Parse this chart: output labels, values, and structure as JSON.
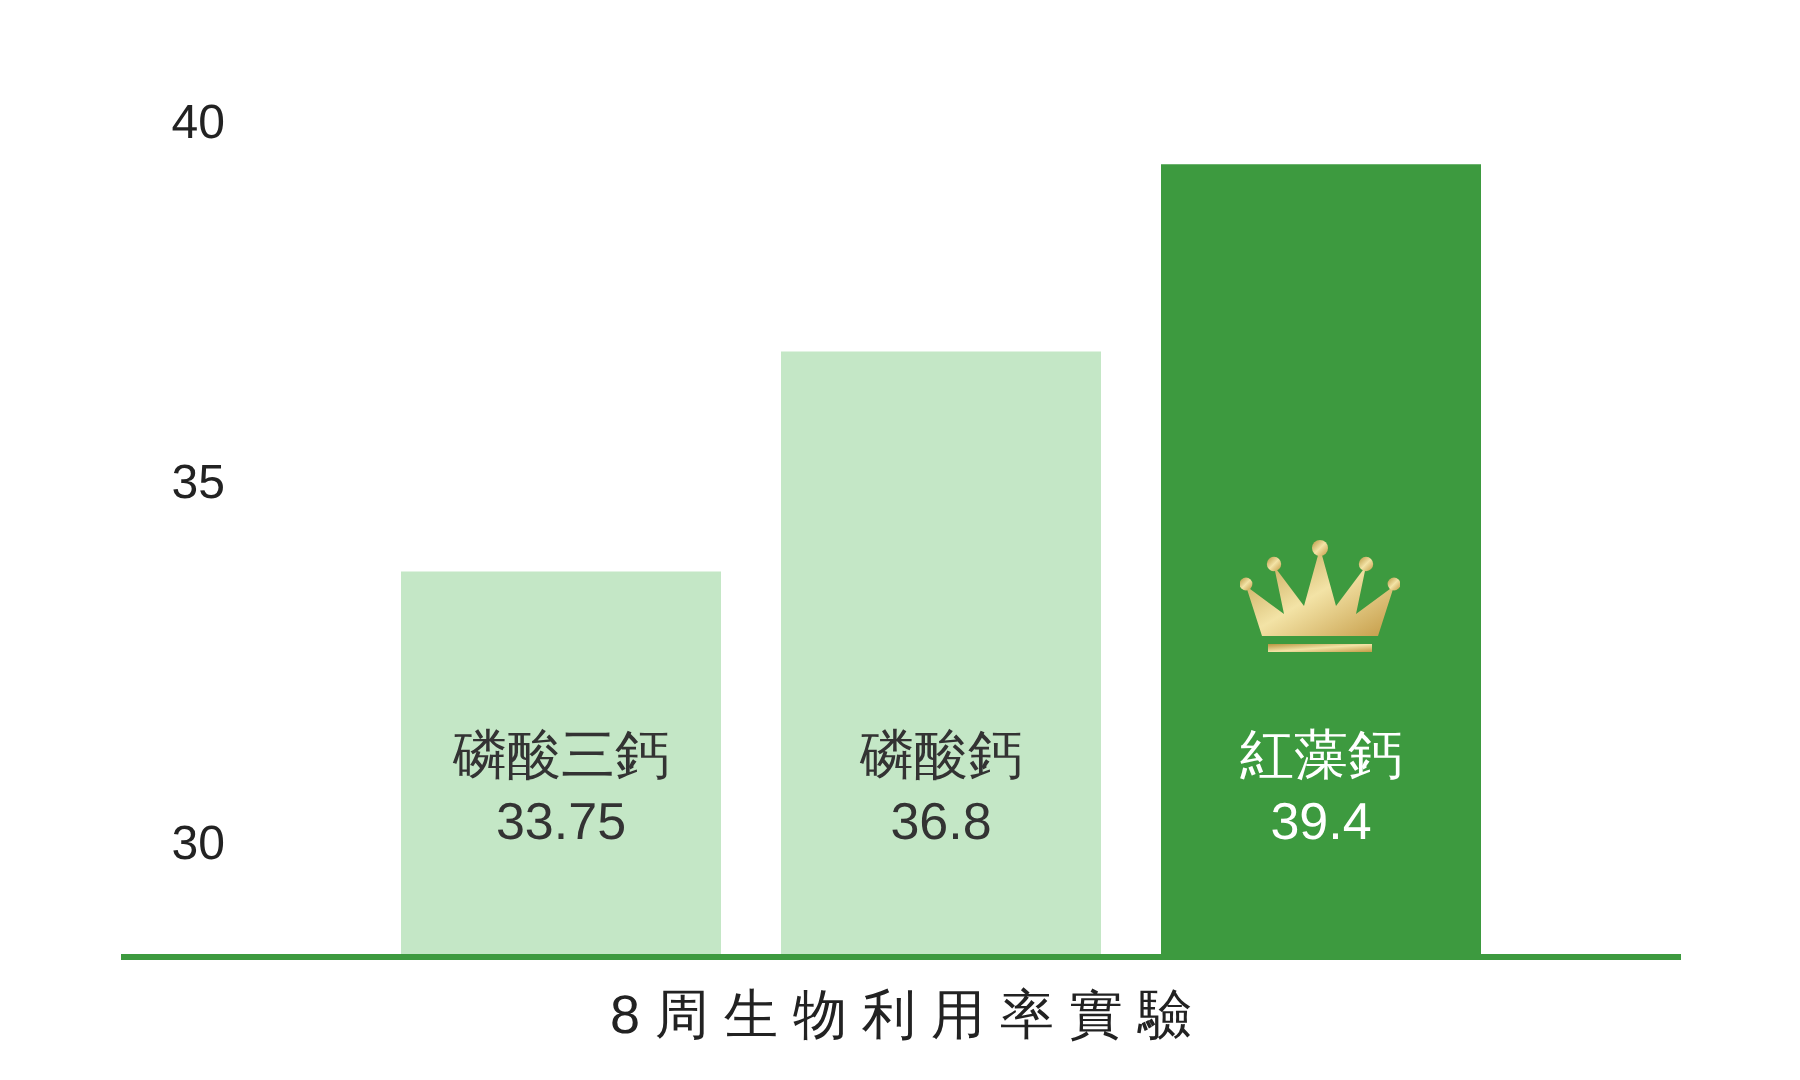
{
  "chart_data": {
    "type": "bar",
    "xlabel": "8 周 生 物 利 用 率 實 驗",
    "categories": [
      "磷酸三鈣",
      "磷酸鈣",
      "紅藻鈣"
    ],
    "values": [
      33.75,
      36.8,
      39.4
    ],
    "colors": [
      "#c4e7c6",
      "#c4e7c6",
      "#3d9a3f"
    ],
    "ylim": [
      28.4,
      40
    ],
    "yticks": [
      30,
      35,
      40
    ],
    "data_labels": true,
    "tick_labels": "y"
  }
}
